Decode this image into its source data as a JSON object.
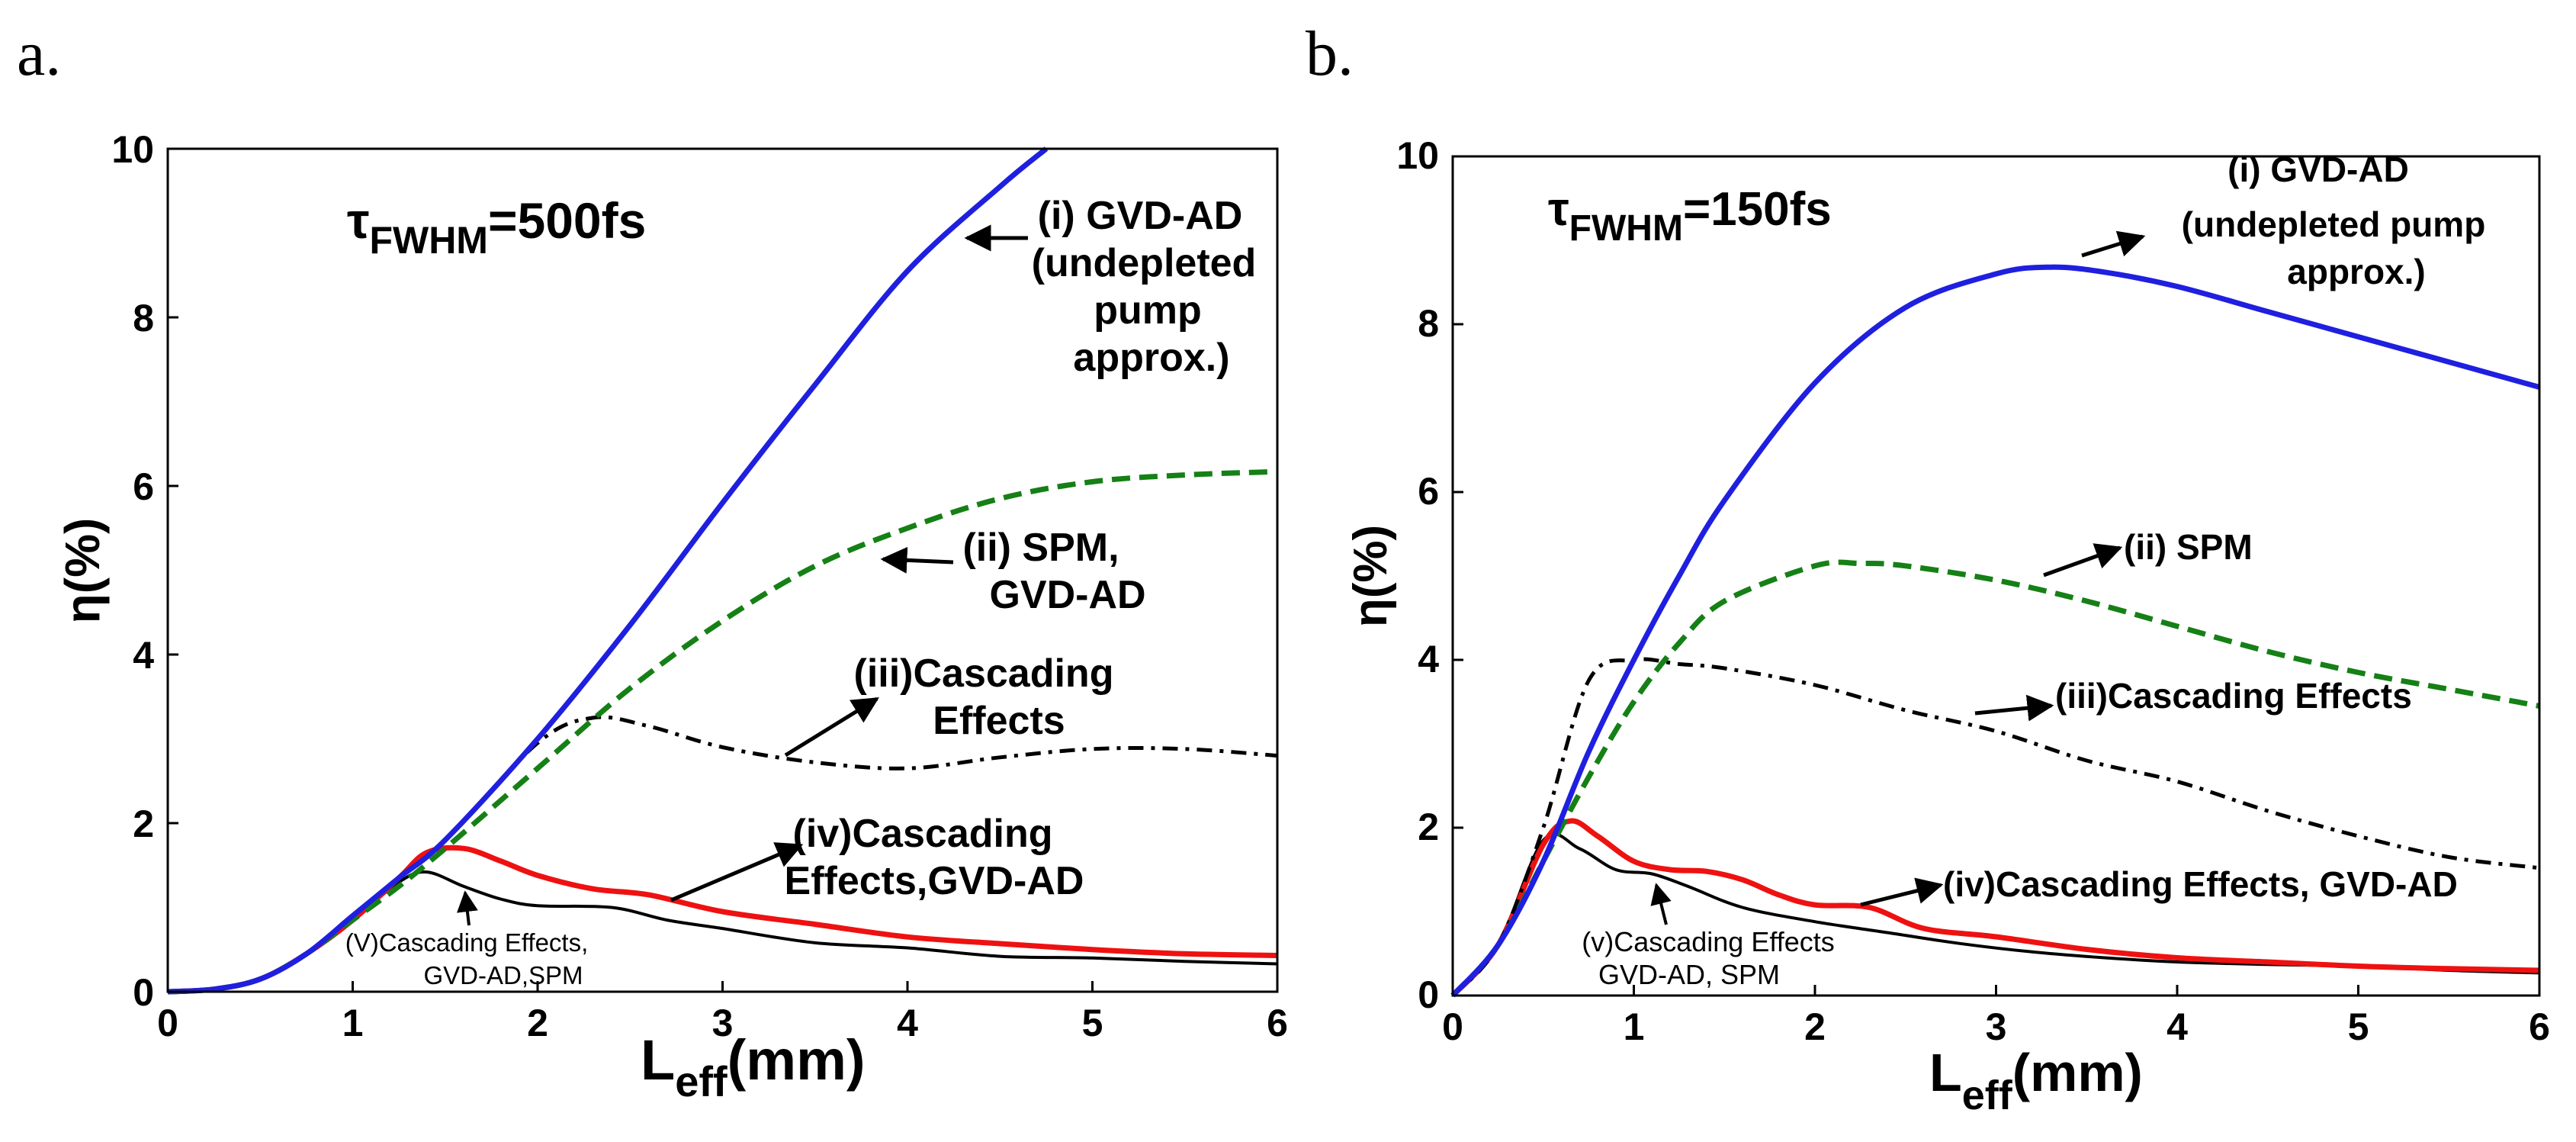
{
  "panels": [
    {
      "letter": "a.",
      "tau_symbol": "τ",
      "tau_sub": "FWHM",
      "tau_value": "=500fs",
      "xlabel_main": "L",
      "xlabel_sub": "eff",
      "xlabel_unit": "(mm)",
      "ylabel": "η(%)",
      "x_ticks": [
        "0",
        "1",
        "2",
        "3",
        "4",
        "5",
        "6"
      ],
      "y_ticks": [
        "0",
        "2",
        "4",
        "6",
        "8",
        "10"
      ],
      "annotations": {
        "i": [
          "(i) GVD-AD",
          "(undepleted",
          "pump",
          "approx.)"
        ],
        "ii": [
          "(ii) SPM,",
          "GVD-AD"
        ],
        "iii": [
          "(iii)Cascading",
          "Effects"
        ],
        "iv": [
          "(iv)Cascading",
          "Effects,GVD-AD"
        ],
        "v": [
          "(V)Cascading Effects,",
          "GVD-AD,SPM"
        ]
      }
    },
    {
      "letter": "b.",
      "tau_symbol": "τ",
      "tau_sub": "FWHM",
      "tau_value": "=150fs",
      "xlabel_main": "L",
      "xlabel_sub": "eff",
      "xlabel_unit": "(mm)",
      "ylabel": "η(%)",
      "x_ticks": [
        "0",
        "1",
        "2",
        "3",
        "4",
        "5",
        "6"
      ],
      "y_ticks": [
        "0",
        "2",
        "4",
        "6",
        "8",
        "10"
      ],
      "annotations": {
        "i": [
          "(i) GVD-AD",
          "(undepleted pump",
          "approx.)"
        ],
        "ii": [
          "(ii) SPM"
        ],
        "iii": [
          "(iii)Cascading Effects"
        ],
        "iv": [
          "(iv)Cascading Effects, GVD-AD"
        ],
        "v": [
          "(v)Cascading Effects",
          "GVD-AD, SPM"
        ]
      }
    }
  ],
  "chart_data": [
    {
      "type": "line",
      "title": "τFWHM=500fs",
      "xlabel": "Leff(mm)",
      "ylabel": "η(%)",
      "xlim": [
        0,
        6
      ],
      "ylim": [
        0,
        10
      ],
      "grid": false,
      "series": [
        {
          "name": "(i) GVD-AD (undepleted pump approx.)",
          "color": "#1f1fe0",
          "style": "solid",
          "x": [
            0,
            0.25,
            0.5,
            0.75,
            1.0,
            1.25,
            1.5,
            2.0,
            2.5,
            3.0,
            3.5,
            4.0,
            4.5,
            4.75
          ],
          "y": [
            0,
            0.03,
            0.15,
            0.45,
            0.9,
            1.35,
            1.8,
            3.0,
            4.35,
            5.8,
            7.2,
            8.55,
            9.55,
            10.0
          ]
        },
        {
          "name": "(ii) SPM, GVD-AD",
          "color": "#158015",
          "style": "dashed",
          "x": [
            0,
            0.25,
            0.5,
            0.75,
            1.0,
            1.25,
            1.5,
            2.0,
            2.5,
            3.0,
            3.5,
            4.0,
            4.5,
            5.0,
            5.5,
            6.0
          ],
          "y": [
            0,
            0.03,
            0.15,
            0.45,
            0.85,
            1.25,
            1.7,
            2.65,
            3.6,
            4.4,
            5.05,
            5.5,
            5.85,
            6.05,
            6.13,
            6.17
          ]
        },
        {
          "name": "(iii)Cascading Effects",
          "color": "#000000",
          "style": "dashdot",
          "x": [
            0,
            0.25,
            0.5,
            0.75,
            1.0,
            1.25,
            1.5,
            2.0,
            2.3,
            2.6,
            3.0,
            3.5,
            4.0,
            4.5,
            5.0,
            5.5,
            6.0
          ],
          "y": [
            0,
            0.03,
            0.15,
            0.45,
            0.9,
            1.35,
            1.8,
            2.95,
            3.25,
            3.15,
            2.9,
            2.72,
            2.65,
            2.78,
            2.88,
            2.88,
            2.8
          ]
        },
        {
          "name": "(iv)Cascading Effects,GVD-AD",
          "color": "#ee1111",
          "style": "solid",
          "x": [
            0,
            0.25,
            0.5,
            0.75,
            1.0,
            1.25,
            1.4,
            1.6,
            1.8,
            2.0,
            2.3,
            2.6,
            3.0,
            3.5,
            4.0,
            4.5,
            5.0,
            5.5,
            6.0
          ],
          "y": [
            0,
            0.03,
            0.15,
            0.45,
            0.85,
            1.35,
            1.65,
            1.7,
            1.55,
            1.38,
            1.22,
            1.15,
            0.95,
            0.8,
            0.65,
            0.57,
            0.5,
            0.45,
            0.43
          ]
        },
        {
          "name": "(V)Cascading Effects, GVD-AD,SPM",
          "color": "#000000",
          "style": "solid-thin",
          "x": [
            0,
            0.25,
            0.5,
            0.75,
            1.0,
            1.25,
            1.4,
            1.6,
            1.8,
            2.0,
            2.4,
            2.7,
            3.0,
            3.5,
            4.0,
            4.5,
            5.0,
            5.5,
            6.0
          ],
          "y": [
            0,
            0.03,
            0.15,
            0.45,
            0.85,
            1.3,
            1.42,
            1.25,
            1.1,
            1.02,
            1.0,
            0.85,
            0.75,
            0.58,
            0.52,
            0.42,
            0.4,
            0.36,
            0.33
          ]
        }
      ]
    },
    {
      "type": "line",
      "title": "τFWHM=150fs",
      "xlabel": "Leff(mm)",
      "ylabel": "η(%)",
      "xlim": [
        0,
        6
      ],
      "ylim": [
        0,
        10
      ],
      "grid": false,
      "series": [
        {
          "name": "(i) GVD-AD (undepleted pump approx.)",
          "color": "#1f1fe0",
          "style": "solid",
          "x": [
            0,
            0.25,
            0.5,
            0.75,
            1.0,
            1.25,
            1.5,
            2.0,
            2.5,
            3.0,
            3.3,
            3.6,
            4.0,
            4.5,
            5.0,
            5.5,
            6.0
          ],
          "y": [
            0,
            0.6,
            1.6,
            2.9,
            4.0,
            5.0,
            5.9,
            7.3,
            8.2,
            8.6,
            8.68,
            8.62,
            8.45,
            8.15,
            7.85,
            7.55,
            7.25
          ]
        },
        {
          "name": "(ii) SPM",
          "color": "#158015",
          "style": "dashed",
          "x": [
            0,
            0.25,
            0.5,
            0.75,
            1.0,
            1.25,
            1.5,
            2.0,
            2.25,
            2.5,
            3.0,
            3.5,
            4.0,
            4.5,
            5.0,
            5.5,
            6.0
          ],
          "y": [
            0,
            0.6,
            1.6,
            2.6,
            3.5,
            4.2,
            4.7,
            5.12,
            5.15,
            5.12,
            4.95,
            4.7,
            4.4,
            4.1,
            3.85,
            3.65,
            3.45
          ]
        },
        {
          "name": "(iii)Cascading Effects",
          "color": "#000000",
          "style": "dashdot",
          "x": [
            0,
            0.25,
            0.5,
            0.75,
            1.0,
            1.25,
            1.5,
            2.0,
            2.5,
            3.0,
            3.5,
            4.0,
            4.5,
            5.0,
            5.5,
            6.0
          ],
          "y": [
            0,
            0.6,
            2.0,
            3.75,
            4.0,
            3.95,
            3.9,
            3.7,
            3.4,
            3.15,
            2.8,
            2.55,
            2.2,
            1.9,
            1.65,
            1.52
          ]
        },
        {
          "name": "(iv)Cascading Effects, GVD-AD",
          "color": "#ee1111",
          "style": "solid",
          "x": [
            0,
            0.25,
            0.5,
            0.65,
            0.8,
            1.0,
            1.2,
            1.4,
            1.6,
            1.8,
            2.0,
            2.3,
            2.6,
            3.0,
            3.5,
            4.0,
            4.5,
            5.0,
            5.5,
            6.0
          ],
          "y": [
            0,
            0.6,
            1.8,
            2.08,
            1.9,
            1.6,
            1.5,
            1.48,
            1.38,
            1.2,
            1.08,
            1.05,
            0.8,
            0.7,
            0.55,
            0.45,
            0.4,
            0.35,
            0.32,
            0.3
          ]
        },
        {
          "name": "(v)Cascading Effects GVD-AD, SPM",
          "color": "#000000",
          "style": "solid-thin",
          "x": [
            0,
            0.25,
            0.5,
            0.7,
            0.9,
            1.1,
            1.3,
            1.6,
            2.0,
            2.4,
            2.8,
            3.2,
            3.6,
            4.0,
            4.5,
            5.0,
            5.5,
            6.0
          ],
          "y": [
            0,
            0.6,
            1.85,
            1.75,
            1.5,
            1.45,
            1.3,
            1.05,
            0.88,
            0.75,
            0.62,
            0.52,
            0.45,
            0.4,
            0.37,
            0.35,
            0.3,
            0.27
          ]
        }
      ]
    }
  ]
}
